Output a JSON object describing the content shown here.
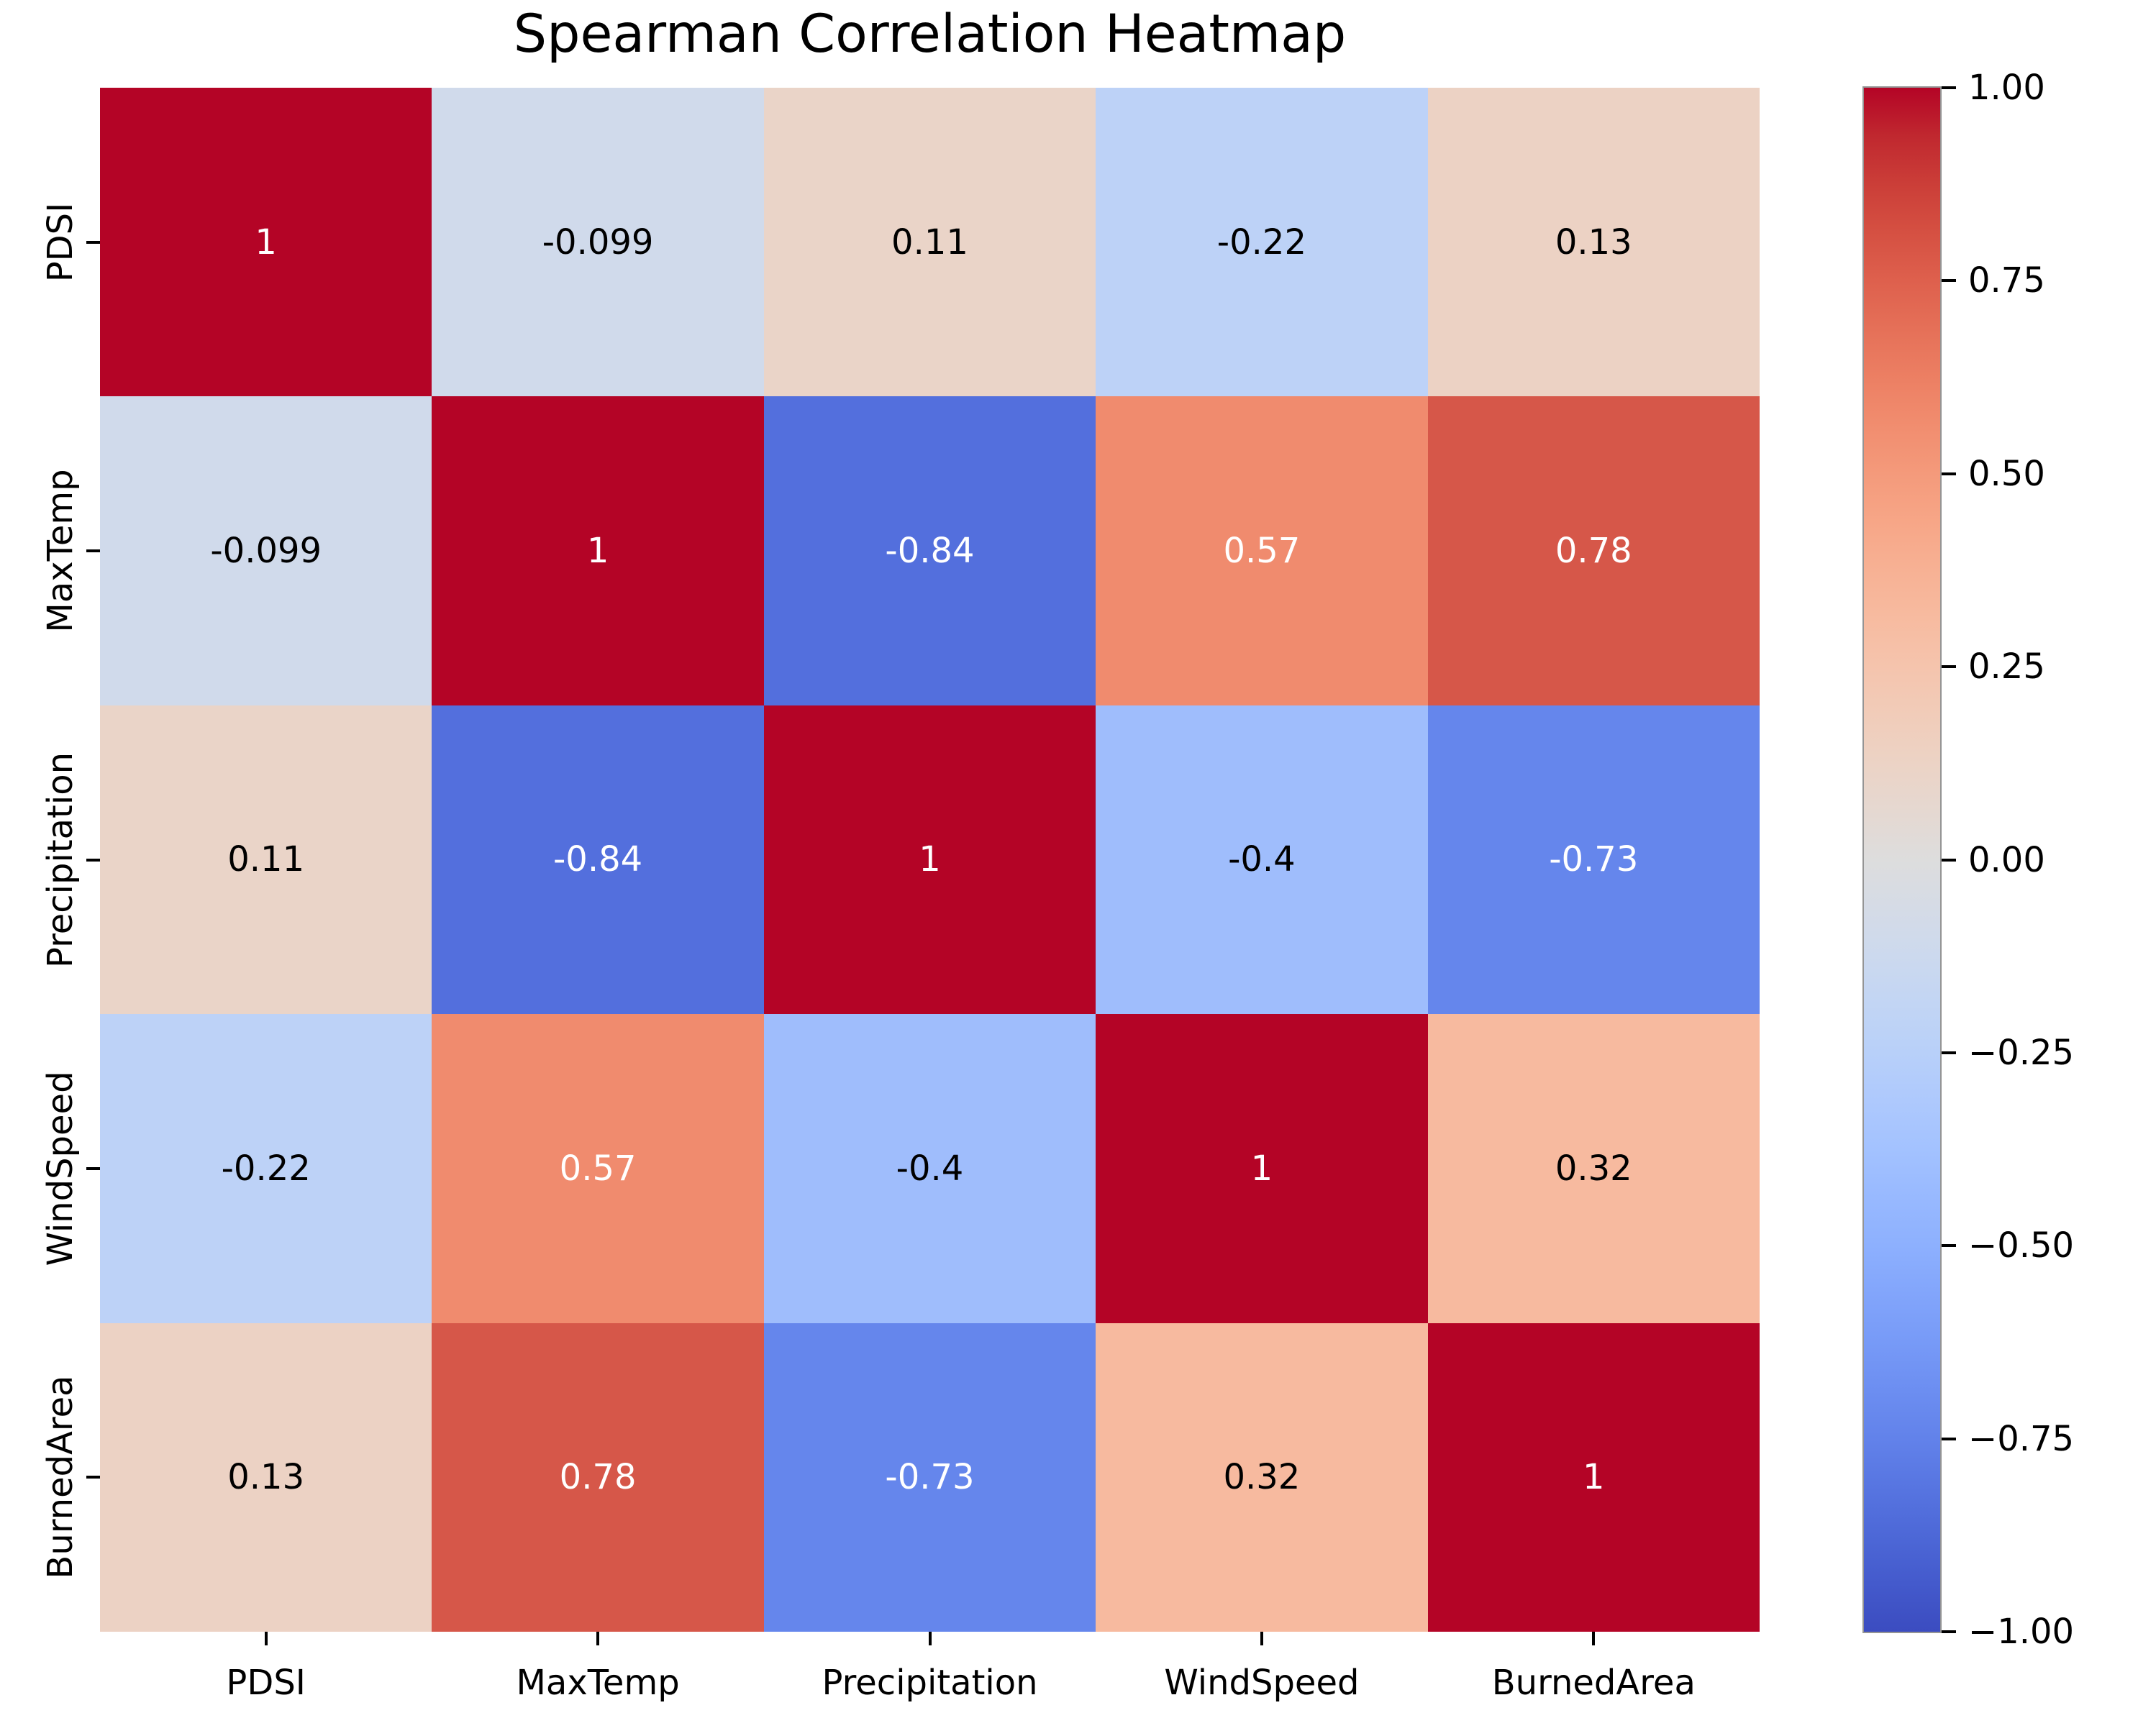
{
  "figure": {
    "background": "#ffffff",
    "text_color": "#000000"
  },
  "chart_data": {
    "type": "heatmap",
    "title": "Spearman Correlation Heatmap",
    "xlabel": "",
    "ylabel": "",
    "x_categories": [
      "PDSI",
      "MaxTemp",
      "Precipitation",
      "WindSpeed",
      "BurnedArea"
    ],
    "y_categories": [
      "PDSI",
      "MaxTemp",
      "Precipitation",
      "WindSpeed",
      "BurnedArea"
    ],
    "matrix": [
      [
        1,
        -0.099,
        0.11,
        -0.22,
        0.13
      ],
      [
        -0.099,
        1,
        -0.84,
        0.57,
        0.78
      ],
      [
        0.11,
        -0.84,
        1,
        -0.4,
        -0.73
      ],
      [
        -0.22,
        0.57,
        -0.4,
        1,
        0.32
      ],
      [
        0.13,
        0.78,
        -0.73,
        0.32,
        1
      ]
    ],
    "cell_labels": [
      [
        "1",
        "-0.099",
        "0.11",
        "-0.22",
        "0.13"
      ],
      [
        "-0.099",
        "1",
        "-0.84",
        "0.57",
        "0.78"
      ],
      [
        "0.11",
        "-0.84",
        "1",
        "-0.4",
        "-0.73"
      ],
      [
        "-0.22",
        "0.57",
        "-0.4",
        "1",
        "0.32"
      ],
      [
        "0.13",
        "0.78",
        "-0.73",
        "0.32",
        "1"
      ]
    ],
    "cell_colors": [
      [
        "#b40426",
        "#d0daeb",
        "#ead4c8",
        "#bdd2f7",
        "#ecd2c4"
      ],
      [
        "#d0daeb",
        "#b40426",
        "#536fdd",
        "#f08b6e",
        "#d65749"
      ],
      [
        "#ead4c8",
        "#536fdd",
        "#b40426",
        "#9fbdfc",
        "#6586ec"
      ],
      [
        "#bdd2f7",
        "#f08b6e",
        "#9fbdfc",
        "#b40426",
        "#f7ba9f"
      ],
      [
        "#ecd2c4",
        "#d65749",
        "#6586ec",
        "#f7ba9f",
        "#b40426"
      ]
    ],
    "cell_text_colors": [
      [
        "#ffffff",
        "#000000",
        "#000000",
        "#000000",
        "#000000"
      ],
      [
        "#000000",
        "#ffffff",
        "#ffffff",
        "#ffffff",
        "#ffffff"
      ],
      [
        "#000000",
        "#ffffff",
        "#ffffff",
        "#000000",
        "#ffffff"
      ],
      [
        "#000000",
        "#ffffff",
        "#000000",
        "#ffffff",
        "#000000"
      ],
      [
        "#000000",
        "#ffffff",
        "#ffffff",
        "#000000",
        "#ffffff"
      ]
    ],
    "colormap": "coolwarm",
    "vmin": -1,
    "vmax": 1,
    "grid": false,
    "legend_position": "right-colorbar",
    "colorbar": {
      "ticks": [
        "1.00",
        "0.75",
        "0.50",
        "0.25",
        "0.00",
        "−0.25",
        "−0.50",
        "−0.75",
        "−1.00"
      ],
      "gradient_stops_top_to_bottom": [
        "#b40426",
        "#c0282f",
        "#cb3e38",
        "#d55042",
        "#de604d",
        "#e57058",
        "#ec7f63",
        "#f18d6f",
        "#f49a7b",
        "#f7a687",
        "#f7b194",
        "#f7bba0",
        "#f5c4ad",
        "#f1ccb9",
        "#ecd3c5",
        "#e5d8d1",
        "#dddddd",
        "#d5dbe6",
        "#ccd9ee",
        "#c2d5f4",
        "#b8d0f9",
        "#aec9fd",
        "#a3c2ff",
        "#98b9ff",
        "#8db0fe",
        "#82a5fb",
        "#779af7",
        "#6c8ef1",
        "#6282ea",
        "#5775e1",
        "#4d68d7",
        "#445acc",
        "#3b4cc0"
      ]
    }
  }
}
